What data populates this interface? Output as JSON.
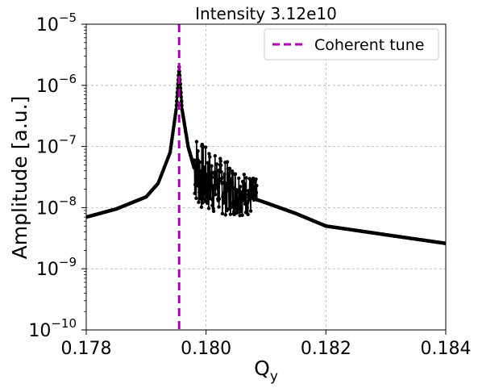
{
  "chart_data": {
    "type": "line",
    "title": "Intensity 3.12e10",
    "xlabel_main": "Q",
    "xlabel_sub": "y",
    "ylabel": "Amplitude [a.u.]",
    "xlim": [
      0.178,
      0.184
    ],
    "ylim": [
      1e-10,
      1e-05
    ],
    "yscale": "log",
    "grid": true,
    "legend_placement": "top-right",
    "x_ticks": [
      "0.178",
      "0.180",
      "0.182",
      "0.184"
    ],
    "x_tick_values": [
      0.178,
      0.18,
      0.182,
      0.184
    ],
    "y_ticks": [
      {
        "value": 1e-10,
        "base": "10",
        "exp": "−10"
      },
      {
        "value": 1e-09,
        "base": "10",
        "exp": "−9"
      },
      {
        "value": 1e-08,
        "base": "10",
        "exp": "−8"
      },
      {
        "value": 1e-07,
        "base": "10",
        "exp": "−7"
      },
      {
        "value": 1e-06,
        "base": "10",
        "exp": "−6"
      },
      {
        "value": 1e-05,
        "base": "10",
        "exp": "−5"
      }
    ],
    "coherent_tune": {
      "name": "Coherent tune",
      "x": 0.17955,
      "color": "#b000b0"
    },
    "series": [
      {
        "color": "#000000",
        "x": [
          0.178,
          0.1785,
          0.179,
          0.1792,
          0.1794,
          0.1795,
          0.17955,
          0.1796,
          0.1797,
          0.1798,
          0.1799,
          0.18,
          0.1802,
          0.1804,
          0.1806,
          0.1808,
          0.181,
          0.1815,
          0.182,
          0.183,
          0.184
        ],
        "y": [
          7e-09,
          9.5e-09,
          1.5e-08,
          2.5e-08,
          8e-08,
          4e-07,
          2e-06,
          4e-07,
          1e-07,
          4.5e-08,
          3e-08,
          2.5e-08,
          2.1e-08,
          1.8e-08,
          1.6e-08,
          1.4e-08,
          1.2e-08,
          8e-09,
          5e-09,
          3.6e-09,
          2.6e-09
        ]
      }
    ],
    "noise_band": {
      "x_start": 0.1798,
      "x_end": 0.18085,
      "y_min": 2.5e-09,
      "y_max": 1.2e-07
    }
  }
}
